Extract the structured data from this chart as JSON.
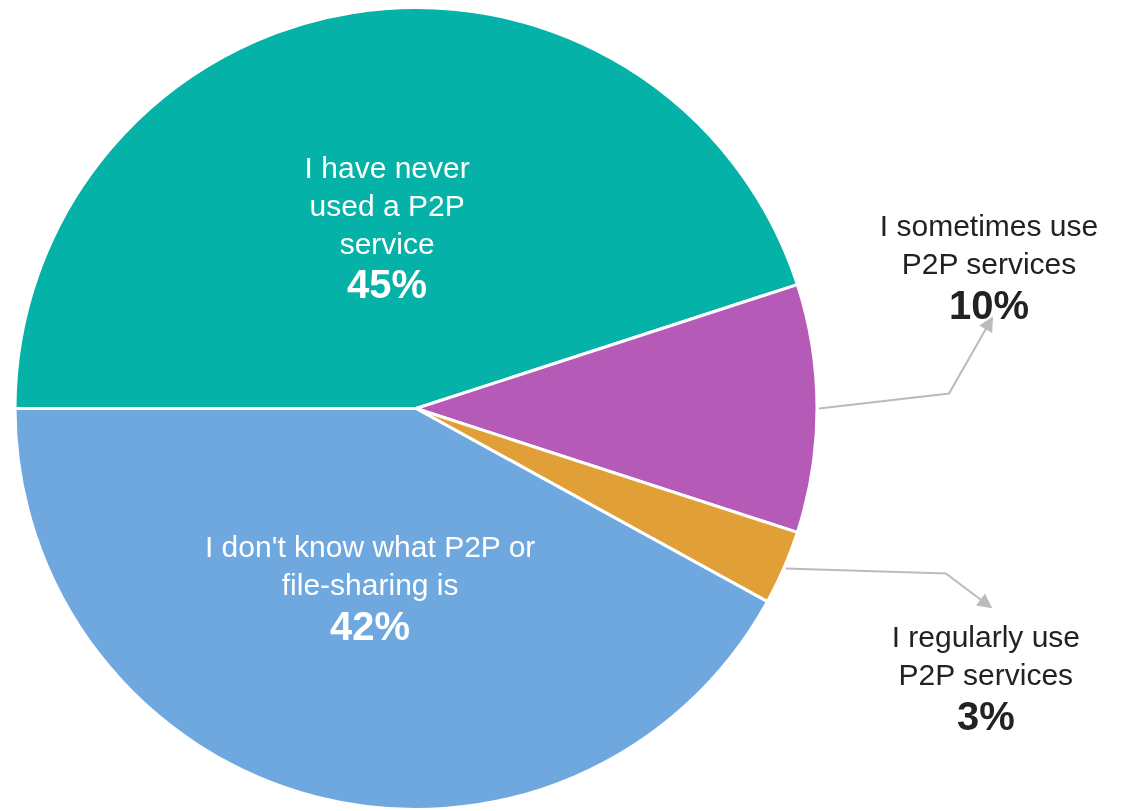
{
  "chart_data": {
    "type": "pie",
    "categories": [
      "I have never used a P2P service",
      "I sometimes use P2P services",
      "I regularly use P2P services",
      "I don't know what P2P or file-sharing is"
    ],
    "values": [
      45,
      10,
      3,
      42
    ],
    "value_labels": [
      "45%",
      "10%",
      "3%",
      "42%"
    ],
    "colors": [
      "#05b2a7",
      "#b55ab6",
      "#e19f38",
      "#6fa8df"
    ],
    "legend": false
  }
}
